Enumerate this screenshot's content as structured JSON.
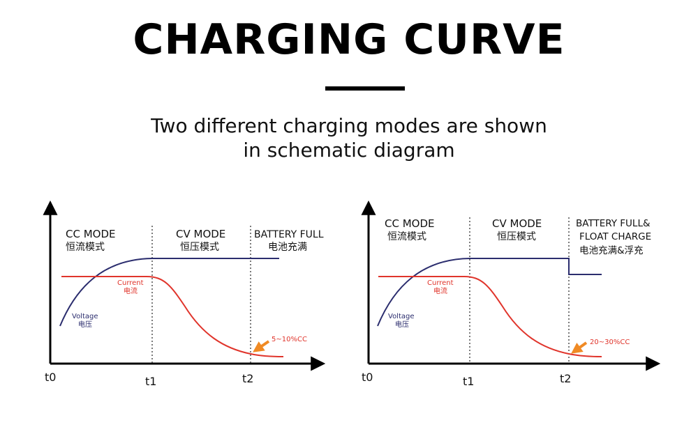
{
  "header": {
    "title": "CHARGING CURVE",
    "subtitle_line1": "Two different charging modes are shown",
    "subtitle_line2": "in schematic diagram"
  },
  "colors": {
    "voltage": "#2b2d6e",
    "current": "#e0342b",
    "annotation_arrow": "#f08a24",
    "axis": "#000000"
  },
  "diagrams": [
    {
      "zones": [
        {
          "label_en": "CC MODE",
          "label_cn": "恒流模式"
        },
        {
          "label_en": "CV MODE",
          "label_cn": "恒压模式"
        },
        {
          "label_en": "BATTERY FULL",
          "label_cn": "电池充满"
        }
      ],
      "current_label_en": "Current",
      "current_label_cn": "电流",
      "voltage_label_en": "Voltage",
      "voltage_label_cn": "电压",
      "annotation": "5~10%CC",
      "ticks": {
        "t0": "t0",
        "t1": "t1",
        "t2": "t2"
      }
    },
    {
      "zones": [
        {
          "label_en": "CC MODE",
          "label_cn": "恒流模式"
        },
        {
          "label_en": "CV MODE",
          "label_cn": "恒压模式"
        },
        {
          "label_en": "BATTERY FULL&",
          "label_en2": "FLOAT CHARGE",
          "label_cn": "电池充满&浮充"
        }
      ],
      "current_label_en": "Current",
      "current_label_cn": "电流",
      "voltage_label_en": "Voltage",
      "voltage_label_cn": "电压",
      "annotation": "20~30%CC",
      "ticks": {
        "t0": "t0",
        "t1": "t1",
        "t2": "t2"
      }
    }
  ]
}
